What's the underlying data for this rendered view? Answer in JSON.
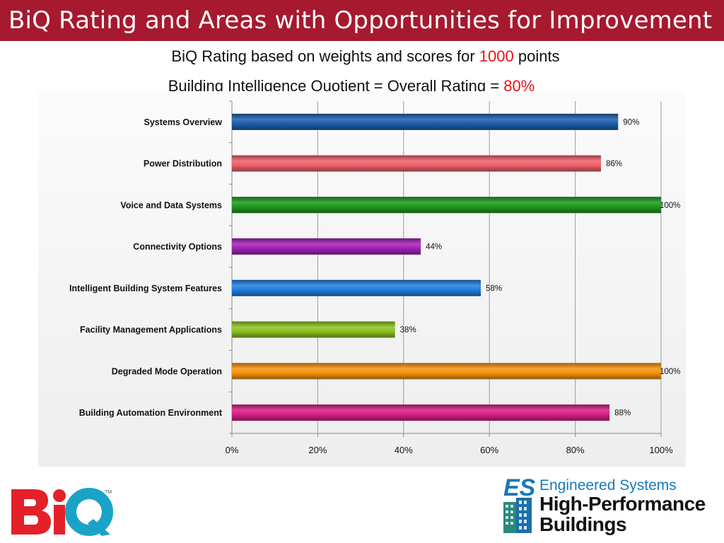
{
  "header": {
    "title": "BiQ Rating and Areas with Opportunities for Improvement"
  },
  "subtitle": {
    "line1_prefix": "BiQ Rating based on weights and scores for ",
    "line1_value": "1000",
    "line1_suffix": " points",
    "line2_prefix": "Building Intelligence Quotient = Overall Rating = ",
    "line2_value": "80%"
  },
  "colors": {
    "title_bar": "#a6192e",
    "highlight": "#e8111d"
  },
  "chart_data": {
    "type": "bar",
    "orientation": "horizontal",
    "categories": [
      "Systems Overview",
      "Power Distribution",
      "Voice and Data Systems",
      "Connectivity Options",
      "Intelligent Building System Features",
      "Facility Management Applications",
      "Degraded Mode Operation",
      "Building Automation Environment"
    ],
    "values": [
      90,
      86,
      100,
      44,
      58,
      38,
      100,
      88
    ],
    "data_labels": [
      "90%",
      "86%",
      "100%",
      "44%",
      "58%",
      "38%",
      "100%",
      "88%"
    ],
    "bar_colors": [
      "#1d5fae",
      "#f0606a",
      "#1e9a1e",
      "#a522b6",
      "#1f7fe0",
      "#8dc21f",
      "#f7930c",
      "#d81f86"
    ],
    "xlim": [
      0,
      100
    ],
    "x_ticks": [
      "0%",
      "20%",
      "40%",
      "60%",
      "80%",
      "100%"
    ],
    "grid": true,
    "legend": "none"
  },
  "logos": {
    "biq": {
      "text": "BiQ",
      "tm": "TM"
    },
    "es": {
      "mark": "ES",
      "line1": "Engineered Systems",
      "line2": "High-Performance",
      "line3": "Buildings"
    }
  }
}
